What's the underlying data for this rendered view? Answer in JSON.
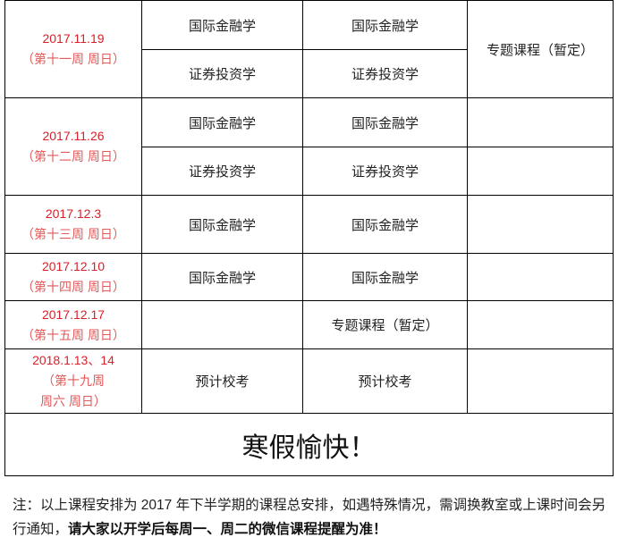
{
  "rows": [
    {
      "date": "2017.11.19",
      "week": "（第十一周  周日）",
      "a1": "国际金融学",
      "b1": "国际金融学",
      "a2": "证券投资学",
      "b2": "证券投资学",
      "c": "专题课程（暂定）"
    },
    {
      "date": "2017.11.26",
      "week": "（第十二周  周日）",
      "a1": "国际金融学",
      "b1": "国际金融学",
      "a2": "证券投资学",
      "b2": "证券投资学"
    },
    {
      "date": "2017.12.3",
      "week": "（第十三周  周日）",
      "a": "国际金融学",
      "b": "国际金融学"
    },
    {
      "date": "2017.12.10",
      "week": "（第十四周  周日）",
      "a": "国际金融学",
      "b": "国际金融学"
    },
    {
      "date": "2017.12.17",
      "week": "（第十五周  周日）",
      "b": "专题课程（暂定）"
    },
    {
      "date": "2018.1.13、14",
      "week": "（第十九周",
      "week2": "周六  周日）",
      "a": "预计校考",
      "b": "预计校考"
    }
  ],
  "holiday": "寒假愉快！",
  "note": {
    "part1": "注：以上课程安排为 2017 年下半学期的课程总安排，如遇特殊情况，需调换教室或上课时间会另行通知，",
    "part2": "请大家以开学后每周一、周二的微信课程提醒为准！"
  },
  "colors": {
    "date": "#d8202a",
    "week": "#e25a5a"
  }
}
